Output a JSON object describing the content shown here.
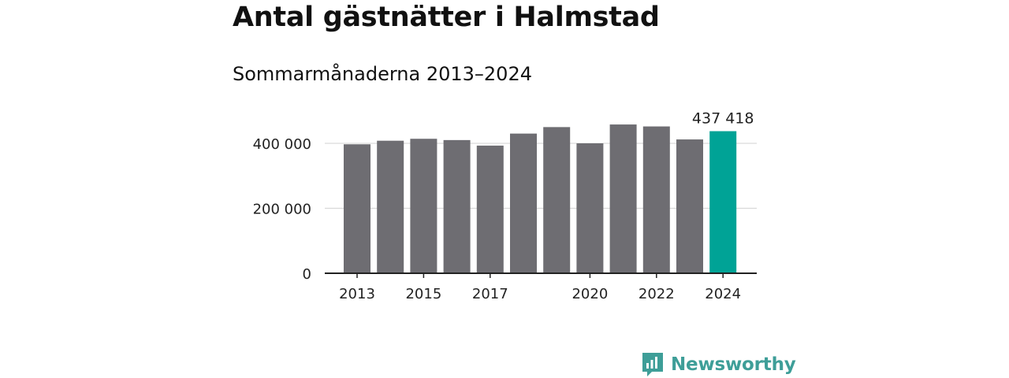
{
  "colors": {
    "bar_default": "#6e6d72",
    "bar_highlight": "#00a396",
    "grid": "#d9d9d9",
    "axis": "#222222",
    "brand": "#3e9e98"
  },
  "logo": {
    "text": "Newsworthy",
    "icon": "newsworthy-logo-icon"
  },
  "chart_data": {
    "type": "bar",
    "title": "Antal gästnätter i Halmstad",
    "subtitle": "Sommarmånaderna 2013–2024",
    "categories": [
      "2013",
      "2014",
      "2015",
      "2016",
      "2017",
      "2018",
      "2019",
      "2020",
      "2021",
      "2022",
      "2023",
      "2024"
    ],
    "values": [
      397000,
      408000,
      414000,
      410000,
      393000,
      430000,
      450000,
      400000,
      458000,
      452000,
      412000,
      437418
    ],
    "highlight_index": 11,
    "value_labels": [
      {
        "index": 11,
        "text": "437 418"
      }
    ],
    "x_tick_labels": [
      {
        "index": 0,
        "text": "2013"
      },
      {
        "index": 2,
        "text": "2015"
      },
      {
        "index": 4,
        "text": "2017"
      },
      {
        "index": 7,
        "text": "2020"
      },
      {
        "index": 9,
        "text": "2022"
      },
      {
        "index": 11,
        "text": "2024"
      }
    ],
    "y_ticks": [
      {
        "value": 0,
        "label": "0"
      },
      {
        "value": 200000,
        "label": "200 000"
      },
      {
        "value": 400000,
        "label": "400 000"
      }
    ],
    "ylim": [
      0,
      480000
    ],
    "grid": true,
    "xlabel": "",
    "ylabel": ""
  }
}
